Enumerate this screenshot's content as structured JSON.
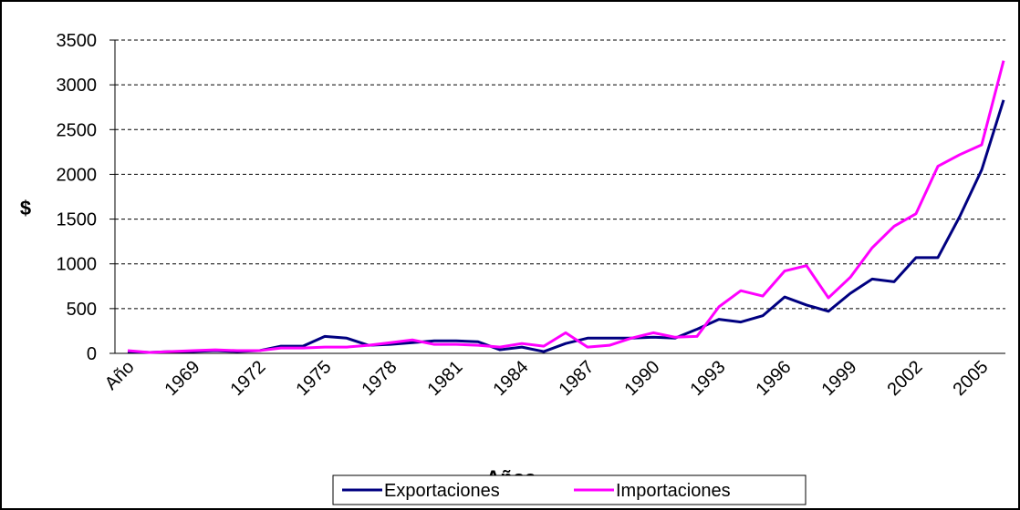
{
  "chart_data": {
    "type": "line",
    "x_label": "Años",
    "y_label": "$",
    "categories": [
      "Año",
      null,
      null,
      "1969",
      null,
      null,
      "1972",
      null,
      null,
      "1975",
      null,
      null,
      "1978",
      null,
      null,
      "1981",
      null,
      null,
      "1984",
      null,
      null,
      "1987",
      null,
      null,
      "1990",
      null,
      null,
      "1993",
      null,
      null,
      "1996",
      null,
      null,
      "1999",
      null,
      null,
      "2002",
      null,
      null,
      "2005",
      null
    ],
    "series": [
      {
        "name": "Exportaciones",
        "color": "#000080",
        "values": [
          20,
          10,
          20,
          20,
          30,
          20,
          30,
          80,
          80,
          190,
          170,
          90,
          100,
          120,
          140,
          140,
          130,
          40,
          70,
          20,
          110,
          170,
          170,
          170,
          180,
          170,
          270,
          380,
          350,
          420,
          630,
          540,
          470,
          670,
          830,
          800,
          1070,
          1070,
          1530,
          2050,
          2830
        ]
      },
      {
        "name": "Importaciones",
        "color": "#ff00ff",
        "values": [
          30,
          10,
          20,
          30,
          40,
          30,
          30,
          60,
          60,
          70,
          70,
          90,
          120,
          150,
          100,
          100,
          90,
          70,
          110,
          80,
          230,
          70,
          90,
          170,
          230,
          180,
          190,
          520,
          700,
          640,
          920,
          980,
          620,
          850,
          1180,
          1420,
          1560,
          2090,
          2220,
          2330,
          3270
        ]
      }
    ],
    "ylim": [
      0,
      3500
    ],
    "yticks": [
      0,
      500,
      1000,
      1500,
      2000,
      2500,
      3000,
      3500
    ],
    "grid": true,
    "legend": "bottom"
  }
}
